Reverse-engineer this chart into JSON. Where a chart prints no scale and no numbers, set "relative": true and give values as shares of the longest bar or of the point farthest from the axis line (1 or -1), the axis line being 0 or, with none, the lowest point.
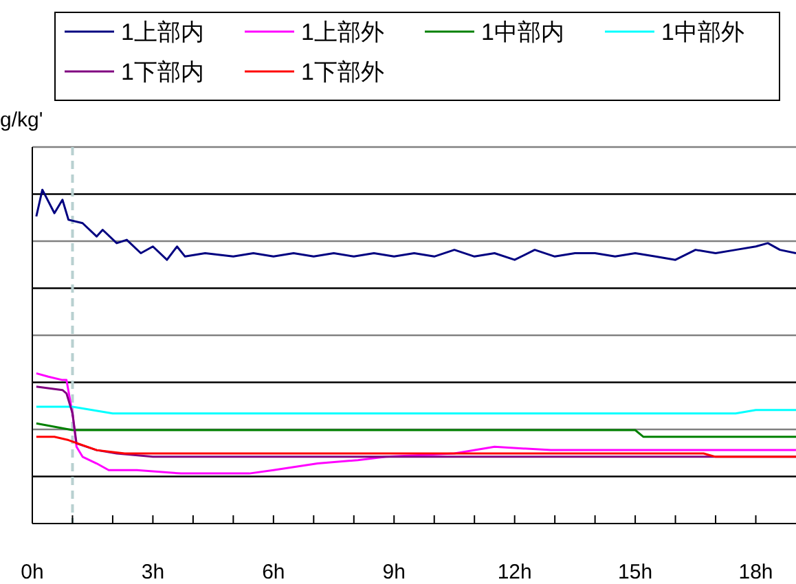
{
  "chart_data": {
    "type": "line",
    "ylabel": "g/kg'",
    "relative": true,
    "grid": "y",
    "legend": "top",
    "line_style": "solid",
    "xlim": [
      0,
      19
    ],
    "xticks": [
      "0h",
      {
        "value": 1,
        "label": null
      },
      {
        "value": 2,
        "label": null
      },
      {
        "value": 3,
        "label": "3h"
      },
      {
        "value": 4,
        "label": null
      },
      {
        "value": 5,
        "label": null
      },
      {
        "value": 6,
        "label": "6h"
      },
      {
        "value": 7,
        "label": null
      },
      {
        "value": 8,
        "label": null
      },
      {
        "value": 9,
        "label": "9h"
      },
      {
        "value": 10,
        "label": null
      },
      {
        "value": 11,
        "label": null
      },
      {
        "value": 12,
        "label": "12h"
      },
      {
        "value": 13,
        "label": null
      },
      {
        "value": 14,
        "label": null
      },
      {
        "value": 15,
        "label": "15h"
      },
      {
        "value": 16,
        "label": null
      },
      {
        "value": 17,
        "label": null
      },
      {
        "value": 18,
        "label": "18h"
      }
    ],
    "ref_lines": [
      {
        "axis": "x",
        "value": 1,
        "color": "#b8d0d0",
        "line_style": "dashed"
      }
    ],
    "series": [
      {
        "name": "1上部内",
        "color": "#000080",
        "x": [
          0.1,
          0.25,
          0.55,
          0.75,
          0.9,
          1.25,
          1.6,
          1.75,
          2.1,
          2.35,
          2.7,
          3.0,
          3.35,
          3.6,
          3.8,
          4.3,
          5,
          5.5,
          6,
          6.5,
          7,
          7.5,
          8,
          8.5,
          9,
          9.5,
          10,
          10.5,
          11,
          11.5,
          12,
          12.5,
          13,
          13.5,
          14,
          14.5,
          15,
          15.5,
          16,
          16.5,
          17,
          17.5,
          18,
          18.3,
          18.6,
          19
        ],
        "values": [
          0.92,
          1.0,
          0.93,
          0.97,
          0.91,
          0.9,
          0.86,
          0.88,
          0.84,
          0.85,
          0.81,
          0.83,
          0.79,
          0.83,
          0.8,
          0.81,
          0.8,
          0.81,
          0.8,
          0.81,
          0.8,
          0.81,
          0.8,
          0.81,
          0.8,
          0.81,
          0.8,
          0.82,
          0.8,
          0.81,
          0.79,
          0.82,
          0.8,
          0.81,
          0.81,
          0.8,
          0.81,
          0.8,
          0.79,
          0.82,
          0.81,
          0.82,
          0.83,
          0.84,
          0.82,
          0.81
        ]
      },
      {
        "name": "1上部外",
        "color": "#ff00ff",
        "x": [
          0.1,
          0.4,
          0.75,
          0.85,
          1.0,
          1.1,
          1.25,
          1.6,
          1.9,
          2.6,
          3.7,
          4.3,
          5.4,
          6.0,
          7.1,
          8.1,
          8.8,
          10.5,
          11.5,
          12.9,
          14.6,
          17.0,
          18.4,
          19
        ],
        "values": [
          0.45,
          0.44,
          0.43,
          0.43,
          0.33,
          0.23,
          0.2,
          0.18,
          0.16,
          0.16,
          0.15,
          0.15,
          0.15,
          0.16,
          0.18,
          0.19,
          0.2,
          0.21,
          0.23,
          0.22,
          0.22,
          0.22,
          0.22,
          0.22
        ]
      },
      {
        "name": "1中部内",
        "color": "#008000",
        "x": [
          0.1,
          1,
          15,
          15.2,
          19
        ],
        "values": [
          0.3,
          0.28,
          0.28,
          0.26,
          0.26
        ]
      },
      {
        "name": "1中部外",
        "color": "#00ffff",
        "x": [
          0.1,
          1,
          2,
          17.5,
          18,
          19
        ],
        "values": [
          0.35,
          0.35,
          0.33,
          0.33,
          0.34,
          0.34
        ]
      },
      {
        "name": "1下部内",
        "color": "#800080",
        "x": [
          0.1,
          0.75,
          0.85,
          1.0,
          1.1,
          1.6,
          2.1,
          3,
          19
        ],
        "values": [
          0.41,
          0.4,
          0.39,
          0.33,
          0.24,
          0.22,
          0.21,
          0.2,
          0.2
        ]
      },
      {
        "name": "1下部外",
        "color": "#ff0000",
        "x": [
          0.1,
          0.55,
          0.9,
          1.6,
          2.3,
          10,
          16.7,
          17,
          19
        ],
        "values": [
          0.26,
          0.26,
          0.25,
          0.22,
          0.21,
          0.21,
          0.21,
          0.2,
          0.2
        ]
      }
    ]
  }
}
